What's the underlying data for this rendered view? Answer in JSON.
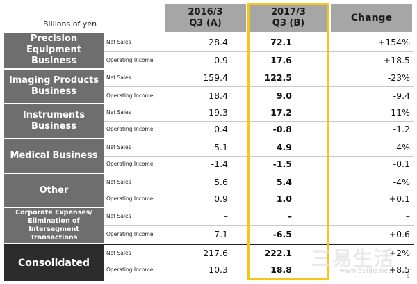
{
  "unit_label": "Billions of yen",
  "columns": {
    "a": [
      "2016/3",
      "Q3 (A)"
    ],
    "b": [
      "2017/3",
      "Q3 (B)"
    ],
    "change": "Change"
  },
  "segments": [
    {
      "name": "Precision Equipment Business",
      "lines": [
        "Precision",
        "Equipment",
        "Business"
      ],
      "rows": [
        {
          "metric": "Net Sales",
          "a": "28.4",
          "b": "72.1",
          "change": "+154%"
        },
        {
          "metric": "Operating Income",
          "a": "-0.9",
          "b": "17.6",
          "change": "+18.5"
        }
      ]
    },
    {
      "name": "Imaging Products Business",
      "lines": [
        "Imaging Products",
        "Business"
      ],
      "rows": [
        {
          "metric": "Net Sales",
          "a": "159.4",
          "b": "122.5",
          "change": "-23%"
        },
        {
          "metric": "Operating Income",
          "a": "18.4",
          "b": "9.0",
          "change": "-9.4"
        }
      ]
    },
    {
      "name": "Instruments Business",
      "lines": [
        "Instruments",
        "Business"
      ],
      "rows": [
        {
          "metric": "Net Sales",
          "a": "19.3",
          "b": "17.2",
          "change": "-11%"
        },
        {
          "metric": "Operating Income",
          "a": "0.4",
          "b": "-0.8",
          "change": "-1.2"
        }
      ]
    },
    {
      "name": "Medical Business",
      "lines": [
        "Medical Business"
      ],
      "rows": [
        {
          "metric": "Net Sales",
          "a": "5.1",
          "b": "4.9",
          "change": "-4%"
        },
        {
          "metric": "Operating Income",
          "a": "-1.4",
          "b": "-1.5",
          "change": "-0.1"
        }
      ]
    },
    {
      "name": "Other",
      "lines": [
        "Other"
      ],
      "rows": [
        {
          "metric": "Net Sales",
          "a": "5.6",
          "b": "5.4",
          "change": "-4%"
        },
        {
          "metric": "Operating Income",
          "a": "0.9",
          "b": "1.0",
          "change": "+0.1"
        }
      ]
    },
    {
      "name": "Corporate Expenses/ Elimination of Intersegment Transactions",
      "lines": [
        "Corporate Expenses/",
        "Elimination of",
        "Intersegment",
        "Transactions"
      ],
      "rows": [
        {
          "metric": "Net Sales",
          "a": "–",
          "b": "–",
          "change": "–"
        },
        {
          "metric": "Operating Income",
          "a": "-7.1",
          "b": "-6.5",
          "change": "+0.6"
        }
      ]
    },
    {
      "name": "Consolidated",
      "lines": [
        "Consolidated"
      ],
      "rows": [
        {
          "metric": "Net Sales",
          "a": "217.6",
          "b": "222.1",
          "change": "+2%"
        },
        {
          "metric": "Operating Income",
          "a": "10.3",
          "b": "18.8",
          "change": "+8.5"
        }
      ]
    }
  ],
  "watermark": {
    "chars": "三易生活",
    "url": "www.3elife.net"
  },
  "page_number": "6"
}
